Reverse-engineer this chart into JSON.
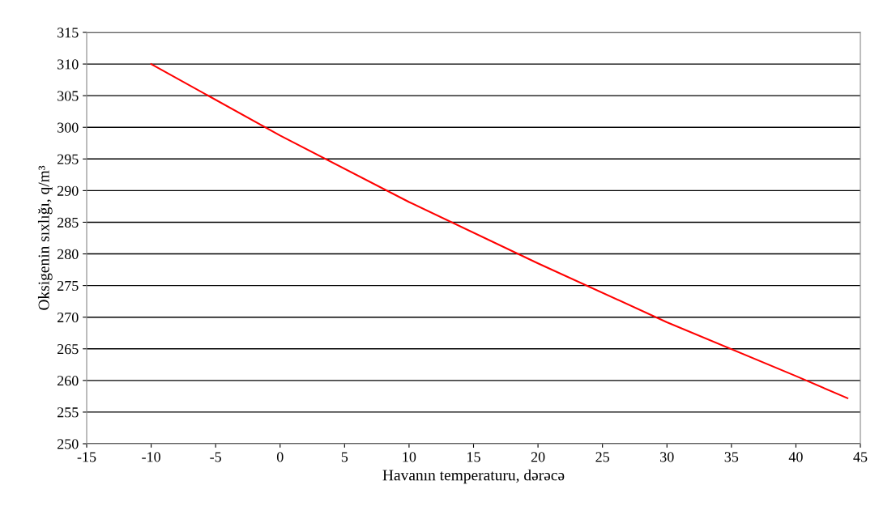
{
  "chart_data": {
    "type": "line",
    "xlabel": "Havanın temperaturu, dərəcə",
    "ylabel": "Oksigenin sıxlığı, q/m³",
    "series": [
      {
        "color": "#ff0000",
        "x": [
          -10,
          0,
          10,
          20,
          30,
          40,
          44
        ],
        "values": [
          310,
          298.7,
          288.2,
          278.5,
          269.2,
          260.7,
          257.2
        ]
      }
    ],
    "xlim": [
      -15,
      45
    ],
    "xticks": [
      -15,
      -10,
      -5,
      0,
      5,
      10,
      15,
      20,
      25,
      30,
      35,
      40,
      45
    ],
    "ylim": [
      250,
      315
    ],
    "yticks": [
      250,
      255,
      260,
      265,
      270,
      275,
      280,
      285,
      290,
      295,
      300,
      305,
      310,
      315
    ],
    "grid": "y",
    "marker": "none",
    "line_style": "solid"
  }
}
